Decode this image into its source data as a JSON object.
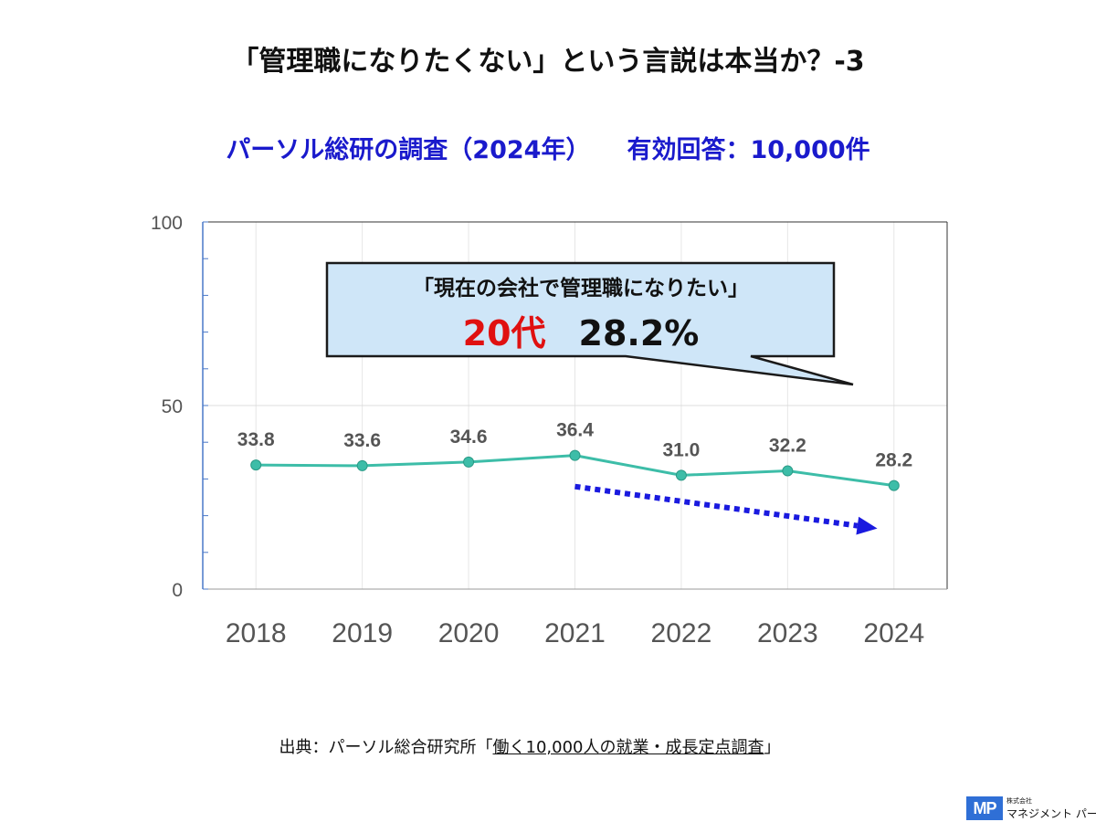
{
  "title": "「管理職になりたくない」という言説は本当か？-3",
  "subtitle": {
    "survey": "パーソル総研の調査（2024年）",
    "responses": "有効回答：10,000件"
  },
  "callout": {
    "line1": "「現在の会社で管理職になりたい」",
    "age": "20代",
    "percent": "28.2%"
  },
  "chart_data": {
    "type": "line",
    "categories": [
      "2018",
      "2019",
      "2020",
      "2021",
      "2022",
      "2023",
      "2024"
    ],
    "series": [
      {
        "values": [
          33.8,
          33.6,
          34.6,
          36.4,
          31.0,
          32.2,
          28.2
        ]
      }
    ],
    "data_labels": [
      "33.8",
      "33.6",
      "34.6",
      "36.4",
      "31.0",
      "32.2",
      "28.2"
    ],
    "ylim": [
      0,
      100
    ],
    "yticks": [
      0,
      50,
      100
    ],
    "grid": true,
    "colors": {
      "line": "#3dbda8",
      "trend_arrow": "#1a1adf",
      "callout_fill": "#cfe6f8"
    },
    "trend_arrow": {
      "from_category": "2021",
      "to_category": "2024",
      "style": "dotted"
    }
  },
  "source": {
    "prefix": "出典：パーソル総合研究所「",
    "title": "働く10,000人の就業・成長定点調査",
    "suffix": "」"
  },
  "logo": {
    "mark": "MP",
    "company_small": "株式会社",
    "company_name": "マネジメント パートナー"
  }
}
